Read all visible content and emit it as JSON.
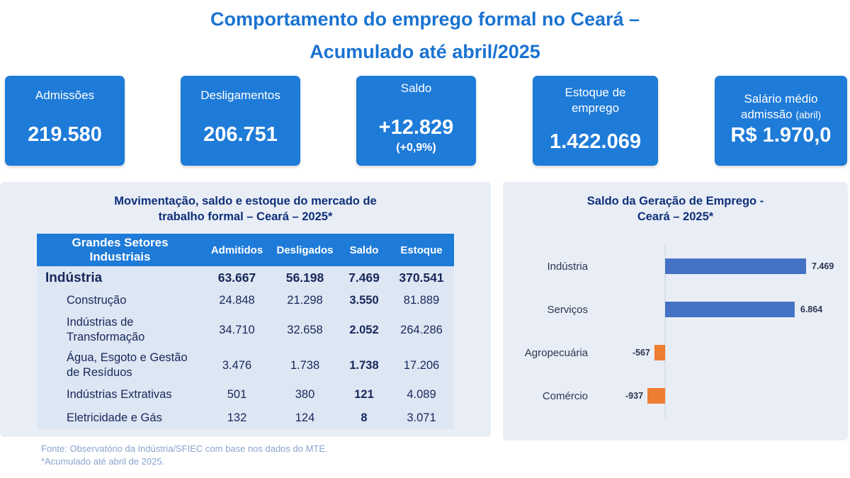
{
  "header": {
    "title_line1": "Comportamento do emprego formal no Ceará –",
    "title_line2": "Acumulado até abril/2025"
  },
  "cards": {
    "admissoes": {
      "label": "Admissões",
      "value": "219.580"
    },
    "desligamentos": {
      "label": "Desligamentos",
      "value": "206.751"
    },
    "saldo": {
      "label": "Saldo",
      "value": "+12.829",
      "sub": "(+0,9%)"
    },
    "estoque": {
      "label_line1": "Estoque de",
      "label_line2": "emprego",
      "value": "1.422.069"
    },
    "salario": {
      "label_line1": "Salário médio",
      "label_line2": "admissão",
      "label_small": "(abril)",
      "value": "R$ 1.970,0"
    }
  },
  "table_panel": {
    "title_line1": "Movimentação, saldo e estoque do mercado de",
    "title_line2": "trabalho formal – Ceará – 2025*",
    "headers": {
      "sector_line1": "Grandes Setores",
      "sector_line2": "Industriais",
      "admitidos": "Admitidos",
      "desligados": "Desligados",
      "saldo": "Saldo",
      "estoque": "Estoque"
    },
    "rows": [
      {
        "name_line1": "Indústria",
        "name_line2": "",
        "admitidos": "63.667",
        "desligados": "56.198",
        "saldo": "7.469",
        "estoque": "370.541"
      },
      {
        "name_line1": "Construção",
        "name_line2": "",
        "admitidos": "24.848",
        "desligados": "21.298",
        "saldo": "3.550",
        "estoque": "81.889"
      },
      {
        "name_line1": "Indústrias de",
        "name_line2": "Transformação",
        "admitidos": "34.710",
        "desligados": "32.658",
        "saldo": "2.052",
        "estoque": "264.286"
      },
      {
        "name_line1": "Água, Esgoto e Gestão",
        "name_line2": "de Resíduos",
        "admitidos": "3.476",
        "desligados": "1.738",
        "saldo": "1.738",
        "estoque": "17.206"
      },
      {
        "name_line1": "Indústrias Extrativas",
        "name_line2": "",
        "admitidos": "501",
        "desligados": "380",
        "saldo": "121",
        "estoque": "4.089"
      },
      {
        "name_line1": "Eletricidade e Gás",
        "name_line2": "",
        "admitidos": "132",
        "desligados": "124",
        "saldo": "8",
        "estoque": "3.071"
      }
    ]
  },
  "footer": {
    "source_line1": "Fonte: Observatório da Indústria/SFIEC com base nos dados do MTE.",
    "source_line2": "*Acumulado até abril de 2025."
  },
  "chart_data": {
    "type": "bar",
    "orientation": "horizontal",
    "title": "Saldo da Geração de Emprego - Ceará – 2025*",
    "title_line1": "Saldo da Geração de Emprego -",
    "title_line2": "Ceará – 2025*",
    "categories": [
      "Indústria",
      "Serviços",
      "Agropecuária",
      "Comércio"
    ],
    "values": [
      7469,
      6864,
      -567,
      -937
    ],
    "value_labels": [
      "7.469",
      "6.864",
      "-567",
      "-937"
    ],
    "colors": {
      "positive": "#4472c4",
      "negative": "#ed7d31"
    },
    "grid": false,
    "legend": "none",
    "xlim": [
      -937,
      7469
    ]
  }
}
